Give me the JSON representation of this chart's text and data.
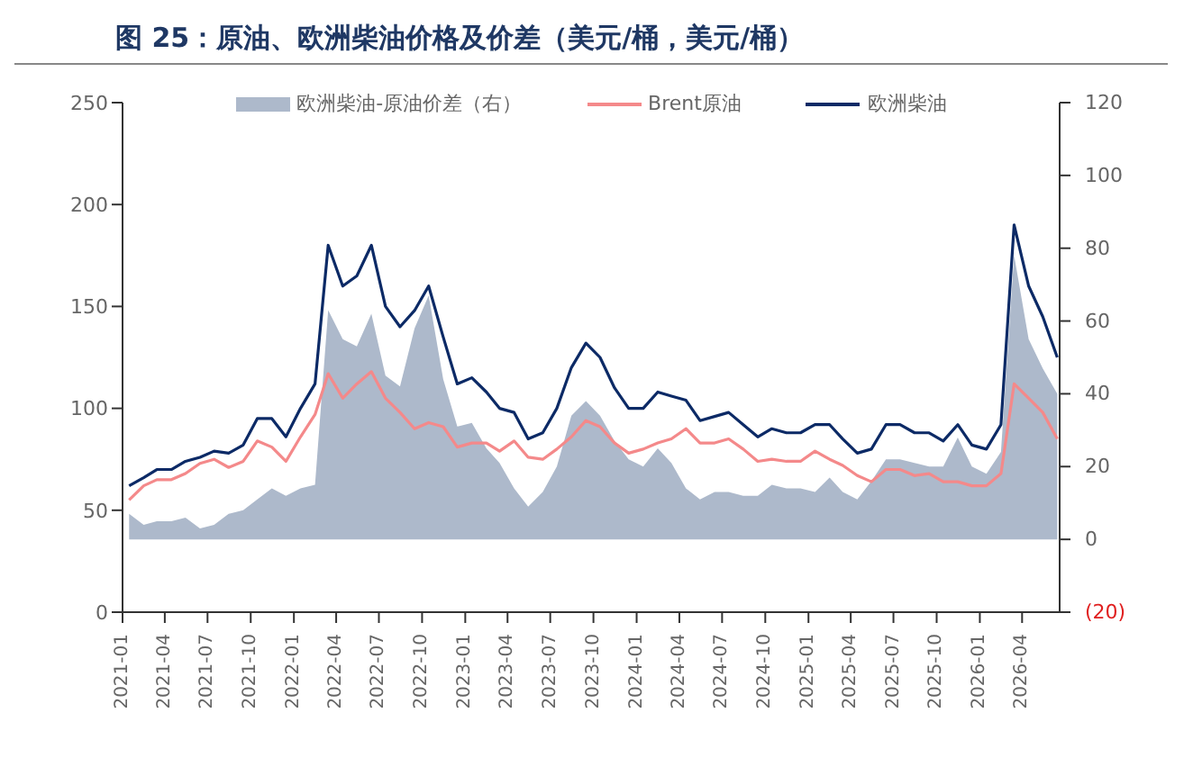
{
  "chart_data": {
    "type": "line",
    "title": "图 25：原油、欧洲柴油价格及价差（美元/桶，美元/桶）",
    "x": [
      "2021-01-15",
      "2021-02-15",
      "2021-03-15",
      "2021-04-15",
      "2021-05-15",
      "2021-06-15",
      "2021-07-15",
      "2021-08-15",
      "2021-09-15",
      "2021-10-15",
      "2021-11-15",
      "2021-12-15",
      "2022-01-15",
      "2022-02-15",
      "2022-03-15",
      "2022-04-15",
      "2022-05-15",
      "2022-06-15",
      "2022-07-15",
      "2022-08-15",
      "2022-09-15",
      "2022-10-15",
      "2022-11-15",
      "2022-12-15",
      "2023-01-15",
      "2023-02-15",
      "2023-03-15",
      "2023-04-15",
      "2023-05-15",
      "2023-06-15",
      "2023-07-15",
      "2023-08-15",
      "2023-09-15",
      "2023-10-15",
      "2023-11-15",
      "2023-12-15",
      "2024-01-15",
      "2024-02-15",
      "2024-03-15",
      "2024-04-15",
      "2024-05-15",
      "2024-06-15",
      "2024-07-15",
      "2024-08-15",
      "2024-09-15",
      "2024-10-15",
      "2024-11-15",
      "2024-12-15",
      "2025-01-15",
      "2025-02-15",
      "2025-03-15",
      "2025-04-15",
      "2025-05-15",
      "2025-06-15",
      "2025-07-15",
      "2025-08-15",
      "2025-09-15",
      "2025-10-15",
      "2025-11-15",
      "2025-12-15",
      "2026-01-15",
      "2026-02-15",
      "2026-03-15",
      "2026-04-15",
      "2026-05-15",
      "2026-06-15"
    ],
    "series": [
      {
        "name": "欧洲柴油-原油价差（右）",
        "type": "area",
        "axis": "y2",
        "color": "#adb9cb",
        "values": [
          7,
          4,
          5,
          5,
          6,
          3,
          4,
          7,
          8,
          11,
          14,
          12,
          14,
          15,
          63,
          55,
          53,
          62,
          45,
          42,
          58,
          67,
          44,
          31,
          32,
          25,
          21,
          14,
          9,
          13,
          20,
          34,
          38,
          34,
          27,
          22,
          20,
          25,
          21,
          14,
          11,
          13,
          13,
          12,
          12,
          15,
          14,
          14,
          13,
          17,
          13,
          11,
          16,
          22,
          22,
          21,
          20,
          20,
          28,
          20,
          18,
          24,
          78,
          55,
          47,
          40
        ]
      },
      {
        "name": "Brent原油",
        "color": "#f4898a",
        "values": [
          55,
          62,
          65,
          65,
          68,
          73,
          75,
          71,
          74,
          84,
          81,
          74,
          86,
          97,
          117,
          105,
          112,
          118,
          105,
          98,
          90,
          93,
          91,
          81,
          83,
          83,
          79,
          84,
          76,
          75,
          80,
          86,
          94,
          91,
          83,
          78,
          80,
          83,
          85,
          90,
          83,
          83,
          85,
          80,
          74,
          75,
          74,
          74,
          79,
          75,
          72,
          67,
          64,
          70,
          70,
          67,
          68,
          64,
          64,
          62,
          62,
          68,
          112,
          105,
          98,
          85
        ]
      },
      {
        "name": "欧洲柴油",
        "color": "#0c2a66",
        "values": [
          62,
          66,
          70,
          70,
          74,
          76,
          79,
          78,
          82,
          95,
          95,
          86,
          100,
          112,
          180,
          160,
          165,
          180,
          150,
          140,
          148,
          160,
          135,
          112,
          115,
          108,
          100,
          98,
          85,
          88,
          100,
          120,
          132,
          125,
          110,
          100,
          100,
          108,
          106,
          104,
          94,
          96,
          98,
          92,
          86,
          90,
          88,
          88,
          92,
          92,
          85,
          78,
          80,
          92,
          92,
          88,
          88,
          84,
          92,
          82,
          80,
          92,
          190,
          160,
          145,
          125
        ]
      }
    ],
    "xlim": [
      "2021-01-01",
      "2026-06-20"
    ],
    "xticks": [
      "2021-01",
      "2021-04",
      "2021-07",
      "2021-10",
      "2022-01",
      "2022-04",
      "2022-07",
      "2022-10",
      "2023-01",
      "2023-04",
      "2023-07",
      "2023-10",
      "2024-01",
      "2024-04",
      "2024-07",
      "2024-10",
      "2025-01",
      "2025-04",
      "2025-07",
      "2025-10",
      "2026-01",
      "2026-04"
    ],
    "ylim": [
      0,
      250
    ],
    "yticks": [
      0,
      50,
      100,
      150,
      200,
      250
    ],
    "y2lim": [
      -20,
      120
    ],
    "y2ticks": [
      {
        "value": -20,
        "label": "(20)"
      },
      0,
      20,
      40,
      60,
      80,
      100,
      120
    ],
    "legend": "top"
  }
}
